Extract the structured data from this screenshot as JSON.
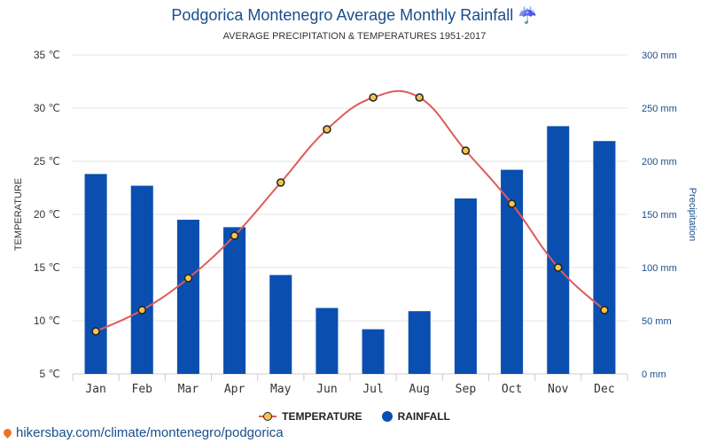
{
  "header": {
    "title": "Podgorica Montenegro Average Monthly Rainfall ☔",
    "subtitle": "AVERAGE PRECIPITATION & TEMPERATURES 1951-2017"
  },
  "legend": {
    "temperature_label": "TEMPERATURE",
    "rainfall_label": "RAINFALL"
  },
  "source": {
    "url_text": "hikersbay.com/climate/montenegro/podgorica"
  },
  "colors": {
    "bar": "#0a4fb0",
    "line": "#e05a5a",
    "marker_fill": "#f5c44e",
    "left_axis": "#333333",
    "right_axis": "#1a4e8c"
  },
  "chart_data": {
    "type": "bar",
    "categories": [
      "Jan",
      "Feb",
      "Mar",
      "Apr",
      "May",
      "Jun",
      "Jul",
      "Aug",
      "Sep",
      "Oct",
      "Nov",
      "Dec"
    ],
    "series": [
      {
        "name": "RAINFALL",
        "type": "bar",
        "axis": "right",
        "values": [
          188,
          177,
          145,
          138,
          93,
          62,
          42,
          59,
          165,
          192,
          233,
          219
        ]
      },
      {
        "name": "TEMPERATURE",
        "type": "line",
        "axis": "left",
        "values": [
          9,
          11,
          14,
          18,
          23,
          28,
          31,
          31,
          26,
          21,
          15,
          11
        ]
      }
    ],
    "y_left": {
      "label": "TEMPERATURE",
      "ticks": [
        "35 ℃",
        "30 ℃",
        "25 ℃",
        "20 ℃",
        "15 ℃",
        "10 ℃",
        "5 ℃"
      ],
      "range": [
        5,
        35
      ]
    },
    "y_right": {
      "label": "Precipitation",
      "ticks": [
        "300 mm",
        "250 mm",
        "200 mm",
        "150 mm",
        "100 mm",
        "50 mm",
        "0 mm"
      ],
      "range": [
        0,
        300
      ]
    },
    "grid": true,
    "legend_position": "bottom-center"
  }
}
